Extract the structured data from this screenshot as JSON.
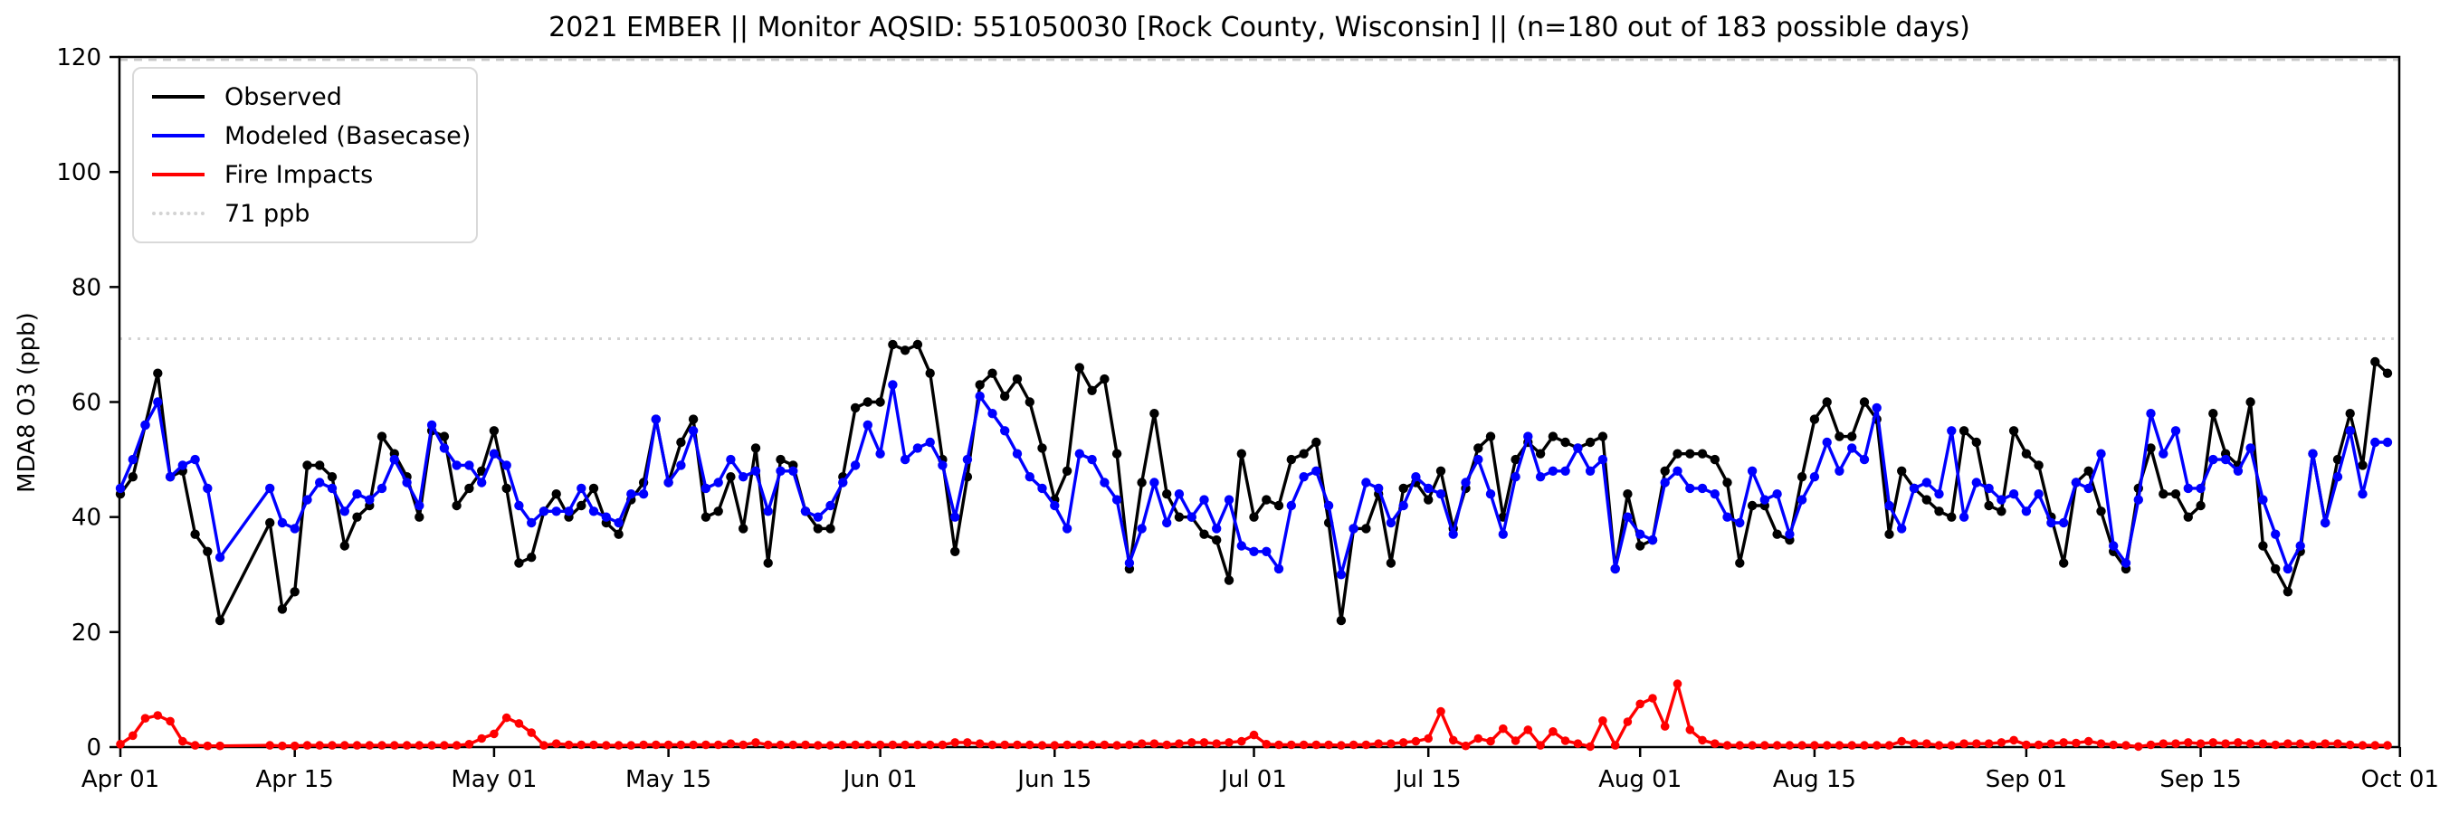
{
  "title": "2021 EMBER || Monitor AQSID: 551050030 [Rock County, Wisconsin] || (n=180 out of 183 possible days)",
  "axes": {
    "ylabel": "MDA8 O3 (ppb)",
    "ylim": [
      0,
      120
    ],
    "y_ticks": [
      0,
      20,
      40,
      60,
      80,
      100,
      120
    ],
    "x_tick_labels": [
      "Apr 01",
      "Apr 15",
      "May 01",
      "May 15",
      "Jun 01",
      "Jun 15",
      "Jul 01",
      "Jul 15",
      "Aug 01",
      "Aug 15",
      "Sep 01",
      "Sep 15",
      "Oct 01"
    ],
    "x_tick_days": [
      0,
      14,
      30,
      44,
      61,
      75,
      91,
      105,
      122,
      136,
      153,
      167,
      183
    ],
    "grid": false
  },
  "legend": {
    "position": "upper-left",
    "items": [
      {
        "label": "Observed",
        "color": "#000000",
        "style": "solid"
      },
      {
        "label": "Modeled (Basecase)",
        "color": "#0000ff",
        "style": "solid"
      },
      {
        "label": "Fire Impacts",
        "color": "#ff0000",
        "style": "solid"
      },
      {
        "label": "71 ppb",
        "color": "#d3d3d3",
        "style": "dotted"
      }
    ]
  },
  "chart_data": {
    "type": "line",
    "title": "2021 EMBER || Monitor AQSID: 551050030 [Rock County, Wisconsin] || (n=180 out of 183 possible days)",
    "xlabel": "",
    "ylabel": "MDA8 O3 (ppb)",
    "ylim": [
      0,
      120
    ],
    "x_start": "2021-04-01",
    "x_end": "2021-09-30",
    "n_possible_days": 183,
    "n_days_with_data": 180,
    "missing_days": [
      "Apr 10",
      "Apr 11",
      "Apr 12"
    ],
    "months": [
      {
        "name": "Apr",
        "days": 30
      },
      {
        "name": "May",
        "days": 31
      },
      {
        "name": "Jun",
        "days": 30
      },
      {
        "name": "Jul",
        "days": 31
      },
      {
        "name": "Aug",
        "days": 31
      },
      {
        "name": "Sep",
        "days": 30
      }
    ],
    "reference_lines": [
      {
        "value": 71,
        "label": "71 ppb",
        "color": "#d3d3d3",
        "style": "dotted"
      },
      {
        "value": 119.5,
        "label": "",
        "color": "#c9c9c9",
        "style": "dashed"
      }
    ],
    "series": [
      {
        "name": "Observed",
        "color": "#000000",
        "marker": "circle",
        "values": [
          44,
          47,
          56,
          65,
          47,
          48,
          37,
          34,
          22,
          null,
          null,
          null,
          39,
          24,
          27,
          49,
          49,
          47,
          35,
          40,
          42,
          54,
          51,
          47,
          40,
          55,
          54,
          42,
          45,
          48,
          55,
          45,
          32,
          33,
          41,
          44,
          40,
          42,
          45,
          39,
          37,
          43,
          46,
          57,
          46,
          53,
          57,
          40,
          41,
          47,
          38,
          52,
          32,
          50,
          49,
          41,
          38,
          38,
          47,
          59,
          60,
          60,
          70,
          69,
          70,
          65,
          50,
          34,
          47,
          63,
          65,
          61,
          64,
          60,
          52,
          43,
          48,
          66,
          62,
          64,
          51,
          31,
          46,
          58,
          44,
          40,
          40,
          37,
          36,
          29,
          51,
          40,
          43,
          42,
          50,
          51,
          53,
          39,
          22,
          38,
          38,
          44,
          32,
          45,
          46,
          43,
          48,
          38,
          45,
          52,
          54,
          40,
          50,
          53,
          51,
          54,
          53,
          52,
          53,
          54,
          31,
          44,
          35,
          36,
          48,
          51,
          51,
          51,
          50,
          46,
          32,
          42,
          42,
          37,
          36,
          47,
          57,
          60,
          54,
          54,
          60,
          57,
          37,
          48,
          45,
          43,
          41,
          40,
          55,
          53,
          42,
          41,
          55,
          51,
          49,
          40,
          32,
          46,
          48,
          41,
          34,
          31,
          45,
          52,
          44,
          44,
          40,
          42,
          58,
          51,
          49,
          60,
          35,
          31,
          27,
          34,
          51,
          39,
          50,
          58,
          49,
          67,
          65
        ]
      },
      {
        "name": "Modeled (Basecase)",
        "color": "#0000ff",
        "marker": "circle",
        "values": [
          45,
          50,
          56,
          60,
          47,
          49,
          50,
          45,
          33,
          null,
          null,
          null,
          45,
          39,
          38,
          43,
          46,
          45,
          41,
          44,
          43,
          45,
          50,
          46,
          42,
          56,
          52,
          49,
          49,
          46,
          51,
          49,
          42,
          39,
          41,
          41,
          41,
          45,
          41,
          40,
          39,
          44,
          44,
          57,
          46,
          49,
          55,
          45,
          46,
          50,
          47,
          48,
          41,
          48,
          48,
          41,
          40,
          42,
          46,
          49,
          56,
          51,
          63,
          50,
          52,
          53,
          49,
          40,
          50,
          61,
          58,
          55,
          51,
          47,
          45,
          42,
          38,
          51,
          50,
          46,
          43,
          32,
          38,
          46,
          39,
          44,
          40,
          43,
          38,
          43,
          35,
          34,
          34,
          31,
          42,
          47,
          48,
          42,
          30,
          38,
          46,
          45,
          39,
          42,
          47,
          45,
          44,
          37,
          46,
          50,
          44,
          37,
          47,
          54,
          47,
          48,
          48,
          52,
          48,
          50,
          31,
          40,
          37,
          36,
          46,
          48,
          45,
          45,
          44,
          40,
          39,
          48,
          43,
          44,
          37,
          43,
          47,
          53,
          48,
          52,
          50,
          59,
          42,
          38,
          45,
          46,
          44,
          55,
          40,
          46,
          45,
          43,
          44,
          41,
          44,
          39,
          39,
          46,
          45,
          51,
          35,
          32,
          43,
          58,
          51,
          55,
          45,
          45,
          50,
          50,
          48,
          52,
          43,
          37,
          31,
          35,
          51,
          39,
          47,
          55,
          44,
          53,
          53
        ]
      },
      {
        "name": "Fire Impacts",
        "color": "#ff0000",
        "marker": "circle",
        "values": [
          0.5,
          2,
          5,
          5.5,
          4.5,
          1,
          0.3,
          0.2,
          0.2,
          null,
          null,
          null,
          0.3,
          0.2,
          0.2,
          0.3,
          0.3,
          0.3,
          0.3,
          0.3,
          0.3,
          0.3,
          0.3,
          0.3,
          0.3,
          0.3,
          0.3,
          0.3,
          0.5,
          1.5,
          2.3,
          5.1,
          4.1,
          2.5,
          0.3,
          0.6,
          0.4,
          0.4,
          0.4,
          0.3,
          0.3,
          0.3,
          0.4,
          0.4,
          0.4,
          0.4,
          0.4,
          0.4,
          0.4,
          0.6,
          0.4,
          0.8,
          0.4,
          0.4,
          0.4,
          0.4,
          0.3,
          0.3,
          0.4,
          0.4,
          0.4,
          0.4,
          0.4,
          0.4,
          0.4,
          0.4,
          0.4,
          0.8,
          0.8,
          0.6,
          0.4,
          0.4,
          0.4,
          0.4,
          0.3,
          0.3,
          0.4,
          0.4,
          0.4,
          0.4,
          0.3,
          0.4,
          0.6,
          0.6,
          0.4,
          0.6,
          0.8,
          0.8,
          0.6,
          0.8,
          1,
          2.1,
          0.5,
          0.4,
          0.4,
          0.4,
          0.4,
          0.4,
          0.3,
          0.4,
          0.4,
          0.6,
          0.6,
          0.8,
          1,
          1.5,
          6.2,
          1.2,
          0.2,
          1.5,
          1,
          3.2,
          1.1,
          3,
          0.3,
          2.7,
          1.1,
          0.6,
          0.1,
          4.6,
          0.3,
          4.4,
          7.5,
          8.5,
          3.6,
          11,
          3,
          1.2,
          0.6,
          0.3,
          0.3,
          0.3,
          0.3,
          0.3,
          0.3,
          0.3,
          0.3,
          0.3,
          0.3,
          0.3,
          0.3,
          0.3,
          0.3,
          1,
          0.6,
          0.6,
          0.3,
          0.3,
          0.6,
          0.6,
          0.6,
          0.8,
          1.2,
          0.4,
          0.4,
          0.6,
          0.8,
          0.7,
          1,
          0.6,
          0.4,
          0.3,
          0.1,
          0.4,
          0.6,
          0.6,
          0.8,
          0.6,
          0.8,
          0.6,
          0.8,
          0.6,
          0.6,
          0.4,
          0.6,
          0.6,
          0.4,
          0.6,
          0.6,
          0.4,
          0.3,
          0.3,
          0.3
        ]
      }
    ]
  }
}
